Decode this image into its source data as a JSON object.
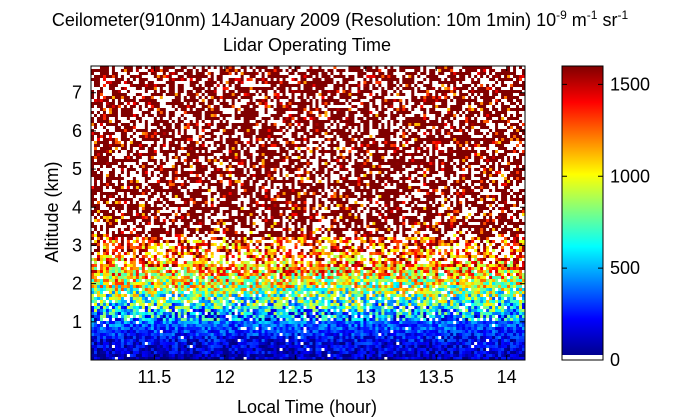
{
  "chart_data": {
    "type": "heatmap",
    "title": {
      "prefix": "Ceilometer(910nm) 14January 2009 (Resolution: 10m 1min) 10",
      "exp1": "-9",
      "mid": " m",
      "exp2": "-1",
      "mid2": " sr",
      "exp3": "-1"
    },
    "subtitle": "Lidar Operating Time",
    "xlabel": "Local Time (hour)",
    "ylabel": "Altitude (km)",
    "xlim": [
      11.05,
      14.13
    ],
    "ylim": [
      0,
      7.7
    ],
    "xticks": [
      11.5,
      12,
      12.5,
      13,
      13.5,
      14
    ],
    "xtick_labels": [
      "11.5",
      "12",
      "12.5",
      "13",
      "13.5",
      "14"
    ],
    "yticks": [
      1,
      2,
      3,
      4,
      5,
      6,
      7
    ],
    "ytick_labels": [
      "1",
      "2",
      "3",
      "4",
      "5",
      "6",
      "7"
    ],
    "colorbar": {
      "range": [
        0,
        1600
      ],
      "ticks": [
        0,
        500,
        1000,
        1500
      ],
      "tick_labels": [
        "0",
        "500",
        "1000",
        "1500"
      ],
      "colormap": "jet"
    },
    "profile": {
      "description_levels": [
        {
          "altitude_km": 0.0,
          "mean_backscatter": 80
        },
        {
          "altitude_km": 0.5,
          "mean_backscatter": 180
        },
        {
          "altitude_km": 1.0,
          "mean_backscatter": 380
        },
        {
          "altitude_km": 1.5,
          "mean_backscatter": 650
        },
        {
          "altitude_km": 2.0,
          "mean_backscatter": 950
        },
        {
          "altitude_km": 2.5,
          "mean_backscatter": 1200
        },
        {
          "altitude_km": 3.5,
          "mean_backscatter": 1450
        },
        {
          "altitude_km": 7.7,
          "mean_backscatter": 1550
        }
      ]
    }
  }
}
